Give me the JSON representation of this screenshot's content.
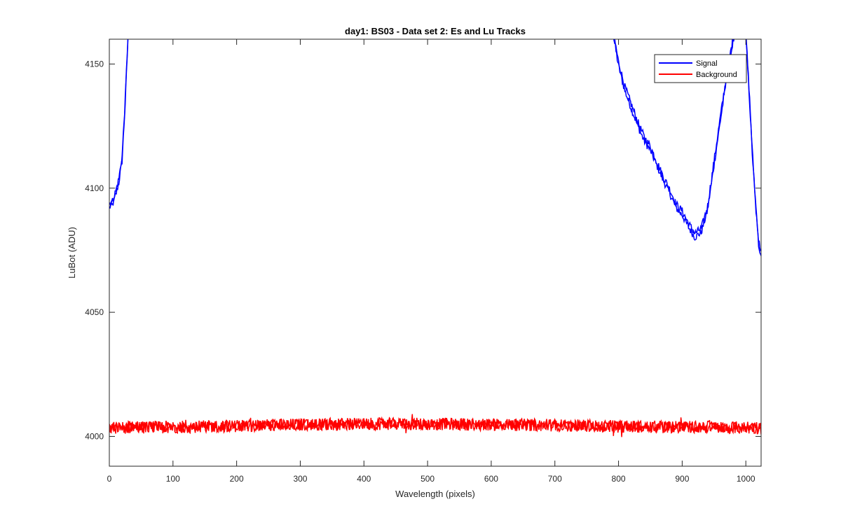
{
  "chart_data": {
    "type": "line",
    "title": "day1: BS03 - Data set 2: Es and Lu Tracks",
    "xlabel": "Wavelength (pixels)",
    "ylabel": "LuBot (ADU)",
    "xlim": [
      0,
      1024
    ],
    "ylim": [
      3988,
      4160
    ],
    "xticks": [
      0,
      100,
      200,
      300,
      400,
      500,
      600,
      700,
      800,
      900,
      1000
    ],
    "yticks": [
      4000,
      4050,
      4100,
      4150
    ],
    "grid": false,
    "legend_position": "top-right",
    "series": [
      {
        "name": "Signal",
        "color": "#0000ff",
        "points": [
          [
            0,
            4093
          ],
          [
            5,
            4094
          ],
          [
            10,
            4098
          ],
          [
            15,
            4103
          ],
          [
            20,
            4112
          ],
          [
            25,
            4135
          ],
          [
            30,
            4165
          ],
          [
            790,
            4165
          ],
          [
            800,
            4150
          ],
          [
            810,
            4140
          ],
          [
            820,
            4133
          ],
          [
            830,
            4126
          ],
          [
            840,
            4120
          ],
          [
            850,
            4116
          ],
          [
            860,
            4110
          ],
          [
            870,
            4104
          ],
          [
            880,
            4099
          ],
          [
            890,
            4093
          ],
          [
            900,
            4090
          ],
          [
            910,
            4085
          ],
          [
            920,
            4081
          ],
          [
            930,
            4083
          ],
          [
            940,
            4092
          ],
          [
            950,
            4110
          ],
          [
            960,
            4128
          ],
          [
            970,
            4145
          ],
          [
            980,
            4160
          ],
          [
            990,
            4165
          ],
          [
            1000,
            4162
          ],
          [
            1005,
            4140
          ],
          [
            1010,
            4115
          ],
          [
            1015,
            4095
          ],
          [
            1020,
            4078
          ],
          [
            1024,
            4074
          ]
        ]
      },
      {
        "name": "Background",
        "color": "#ff0000",
        "points": [
          [
            0,
            4003.5
          ],
          [
            100,
            4003.8
          ],
          [
            200,
            4004.2
          ],
          [
            300,
            4004.8
          ],
          [
            400,
            4005.0
          ],
          [
            500,
            4005.0
          ],
          [
            600,
            4004.8
          ],
          [
            700,
            4004.5
          ],
          [
            800,
            4004.0
          ],
          [
            900,
            4003.8
          ],
          [
            1000,
            4003.5
          ],
          [
            1024,
            4003.3
          ]
        ]
      }
    ]
  }
}
